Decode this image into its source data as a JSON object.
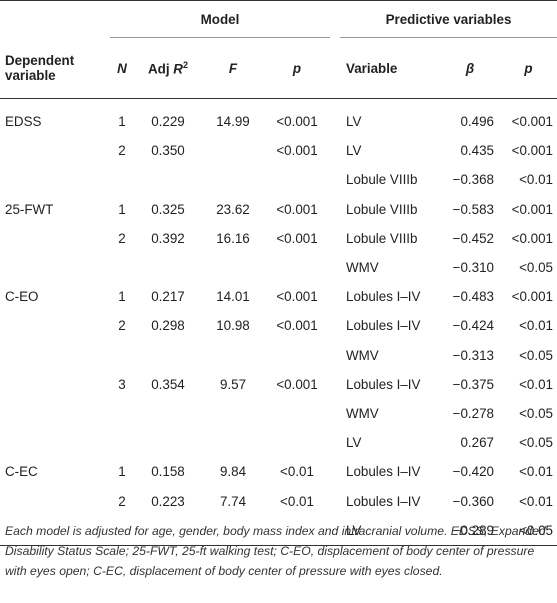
{
  "header": {
    "model_group": "Model",
    "predictive_group": "Predictive variables",
    "dependent_variable_line1": "Dependent",
    "dependent_variable_line2": "variable",
    "n": "N",
    "adj_r2_prefix": "Adj ",
    "adj_r2_var": "R",
    "adj_r2_sup": "2",
    "f": "F",
    "p": "p",
    "variable": "Variable",
    "beta": "β",
    "p2": "p"
  },
  "rows": [
    {
      "dep": "EDSS",
      "n": "1",
      "r2": "0.229",
      "f": "14.99",
      "p": "<0.001",
      "var": "LV",
      "beta": "0.496",
      "p2": "<0.001"
    },
    {
      "dep": "",
      "n": "2",
      "r2": "0.350",
      "f": "",
      "p": "<0.001",
      "var": "LV",
      "beta": "0.435",
      "p2": "<0.001"
    },
    {
      "dep": "",
      "n": "",
      "r2": "",
      "f": "",
      "p": "",
      "var": "Lobule VIIIb",
      "beta": "−0.368",
      "p2": "<0.01"
    },
    {
      "dep": "25-FWT",
      "n": "1",
      "r2": "0.325",
      "f": "23.62",
      "p": "<0.001",
      "var": "Lobule VIIIb",
      "beta": "−0.583",
      "p2": "<0.001"
    },
    {
      "dep": "",
      "n": "2",
      "r2": "0.392",
      "f": "16.16",
      "p": "<0.001",
      "var": "Lobule VIIIb",
      "beta": "−0.452",
      "p2": "<0.001"
    },
    {
      "dep": "",
      "n": "",
      "r2": "",
      "f": "",
      "p": "",
      "var": "WMV",
      "beta": "−0.310",
      "p2": "<0.05"
    },
    {
      "dep": "C-EO",
      "n": "1",
      "r2": "0.217",
      "f": "14.01",
      "p": "<0.001",
      "var": "Lobules I–IV",
      "beta": "−0.483",
      "p2": "<0.001"
    },
    {
      "dep": "",
      "n": "2",
      "r2": "0.298",
      "f": "10.98",
      "p": "<0.001",
      "var": "Lobules I–IV",
      "beta": "−0.424",
      "p2": "<0.01"
    },
    {
      "dep": "",
      "n": "",
      "r2": "",
      "f": "",
      "p": "",
      "var": "WMV",
      "beta": "−0.313",
      "p2": "<0.05"
    },
    {
      "dep": "",
      "n": "3",
      "r2": "0.354",
      "f": "9.57",
      "p": "<0.001",
      "var": "Lobules I–IV",
      "beta": "−0.375",
      "p2": "<0.01"
    },
    {
      "dep": "",
      "n": "",
      "r2": "",
      "f": "",
      "p": "",
      "var": "WMV",
      "beta": "−0.278",
      "p2": "<0.05"
    },
    {
      "dep": "",
      "n": "",
      "r2": "",
      "f": "",
      "p": "",
      "var": "LV",
      "beta": "0.267",
      "p2": "<0.05"
    },
    {
      "dep": "C-EC",
      "n": "1",
      "r2": "0.158",
      "f": "9.84",
      "p": "<0.01",
      "var": "Lobules I–IV",
      "beta": "−0.420",
      "p2": "<0.01"
    },
    {
      "dep": "",
      "n": "2",
      "r2": "0.223",
      "f": "7.74",
      "p": "<0.01",
      "var": "Lobules I–IV",
      "beta": "−0.360",
      "p2": "<0.01"
    },
    {
      "dep": "",
      "n": "",
      "r2": "",
      "f": "",
      "p": "",
      "var": "LV",
      "beta": "−0.289",
      "p2": "<0.05"
    }
  ],
  "footnote": "Each model is adjusted for age, gender, body mass index and intracranial volume. EDSS, Expanded Disability Status Scale; 25-FWT, 25-ft walking test; C-EO, displacement of body center of pressure with eyes open; C-EC, displacement of body center of pressure with eyes closed."
}
